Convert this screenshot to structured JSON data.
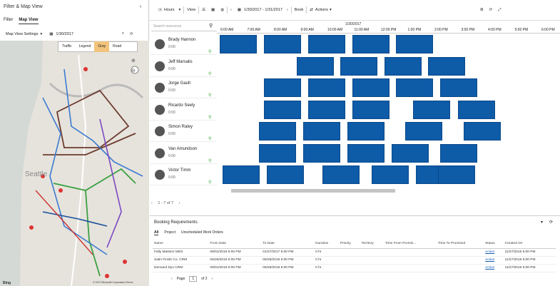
{
  "left": {
    "title": "Filter & Map View",
    "tabs": [
      "Filter",
      "Map View"
    ],
    "settings": "Map View Settings",
    "date": "1/30/2017",
    "legend": [
      "Traffic",
      "Legend",
      "Gray",
      "Road"
    ],
    "footer_brand": "Bing",
    "footer_copy": "© 2017 Microsoft Corporation Terms"
  },
  "top": {
    "hours": "Hours",
    "view": "View",
    "range": "1/30/2017 - 1/31/2017",
    "book": "Book",
    "actions": "Actions"
  },
  "search_placeholder": "Search resources",
  "timeline": {
    "date": "1/30/2017",
    "hours": [
      "6:00 AM",
      "7:00 AM",
      "8:00 AM",
      "9:00 AM",
      "10:00 AM",
      "11:00 AM",
      "12:00 PM",
      "1:00 PM",
      "2:00 PM",
      "3:00 PM",
      "4:00 PM",
      "5:00 PM",
      "6:00 PM"
    ]
  },
  "resources": [
    {
      "name": "Brady Hannon",
      "time": "0:00"
    },
    {
      "name": "Jeff Marsalis",
      "time": "0:00"
    },
    {
      "name": "Jorge Gault",
      "time": "0:00"
    },
    {
      "name": "Ricardo Seely",
      "time": "0:00"
    },
    {
      "name": "Simon Raley",
      "time": "0:00"
    },
    {
      "name": "Van Amundson",
      "time": "0:00"
    },
    {
      "name": "Victor Timm",
      "time": "0:00"
    }
  ],
  "pager_text": "1 - 7 of 7",
  "booking": {
    "title": "Booking Requirements",
    "tabs": [
      "All",
      "Project",
      "Unscheduled Work Orders"
    ],
    "columns": [
      "Name",
      "From Date",
      "To Date",
      "Duration",
      "Priority",
      "Territory",
      "Time From Promis...",
      "Time To Promised",
      "Status",
      "Created On"
    ],
    "rows": [
      [
        "Fally Masters MDS",
        "08/01/2016 5:00 PM",
        "01/27/2017 5:00 PM",
        "0 hr",
        "",
        "",
        "",
        "",
        "Active",
        "11/27/2016 5:00 PM"
      ],
      [
        "Satin Finish Co. CRM",
        "06/26/2016 5:00 PM",
        "06/26/2016 5:00 PM",
        "0 hr",
        "",
        "",
        "",
        "",
        "Active",
        "11/27/2016 5:00 PM"
      ],
      [
        "Demand Dyn CRM",
        "08/01/2016 5:00 PM",
        "06/26/2016 5:00 PM",
        "0 hr",
        "",
        "",
        "",
        "",
        "Active",
        "11/27/2016 5:00 PM"
      ]
    ],
    "page_label": "Page",
    "page": "1",
    "page_of": "of 2"
  }
}
